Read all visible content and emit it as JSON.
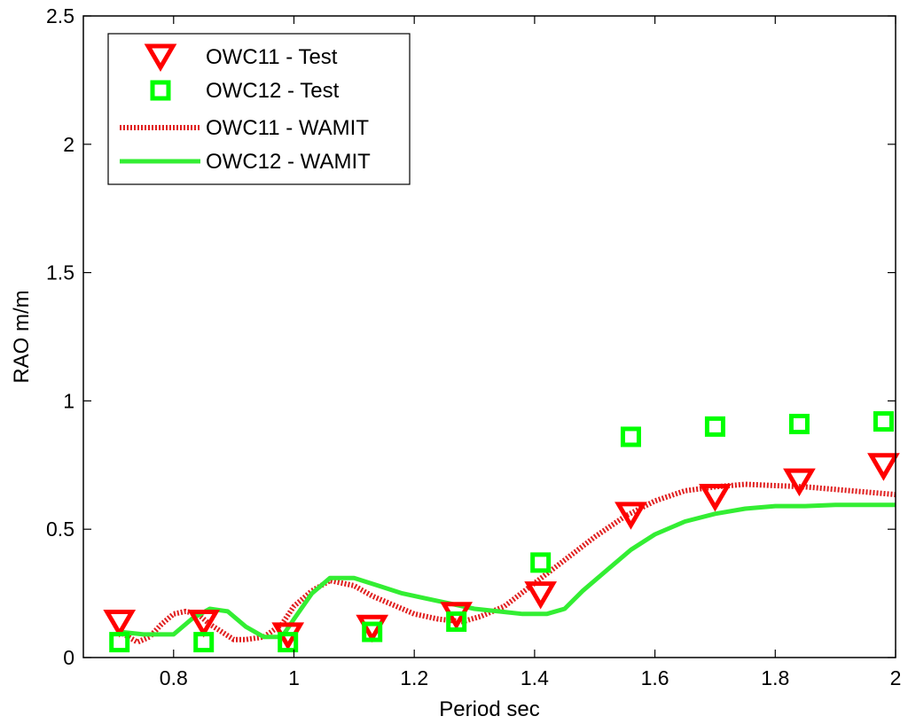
{
  "chart_data": {
    "type": "line",
    "title": "",
    "xlabel": "Period sec",
    "ylabel": "RAO m/m",
    "xlim": [
      0.65,
      2.0
    ],
    "ylim": [
      0,
      2.5
    ],
    "xticks": [
      0.8,
      1.0,
      1.2,
      1.4,
      1.6,
      1.8,
      2.0
    ],
    "xtick_labels": [
      "0.8",
      "1",
      "1.2",
      "1.4",
      "1.6",
      "1.8",
      "2"
    ],
    "yticks": [
      0,
      0.5,
      1.0,
      1.5,
      2.0,
      2.5
    ],
    "ytick_labels": [
      "0",
      "0.5",
      "1",
      "1.5",
      "2",
      "2.5"
    ],
    "grid": false,
    "legend_position": "top-left",
    "series": [
      {
        "name": "OWC11 - Test",
        "style": "marker-triangle-down",
        "color": "#ff0000",
        "x": [
          0.71,
          0.85,
          0.99,
          1.13,
          1.27,
          1.41,
          1.56,
          1.7,
          1.84,
          1.98
        ],
        "y": [
          0.14,
          0.14,
          0.09,
          0.12,
          0.17,
          0.25,
          0.56,
          0.63,
          0.69,
          0.75
        ]
      },
      {
        "name": "OWC12 - Test",
        "style": "marker-square",
        "color": "#00ff00",
        "x": [
          0.71,
          0.85,
          0.99,
          1.13,
          1.27,
          1.41,
          1.56,
          1.7,
          1.84,
          1.98
        ],
        "y": [
          0.06,
          0.06,
          0.06,
          0.1,
          0.14,
          0.37,
          0.86,
          0.9,
          0.91,
          0.92
        ]
      },
      {
        "name": "OWC11 - WAMIT",
        "style": "dotted-line",
        "color": "#e02020",
        "x": [
          0.71,
          0.74,
          0.76,
          0.78,
          0.8,
          0.82,
          0.84,
          0.86,
          0.88,
          0.9,
          0.92,
          0.95,
          0.98,
          1.0,
          1.03,
          1.06,
          1.1,
          1.13,
          1.16,
          1.2,
          1.24,
          1.28,
          1.31,
          1.35,
          1.4,
          1.45,
          1.5,
          1.55,
          1.6,
          1.65,
          1.7,
          1.75,
          1.8,
          1.85,
          1.9,
          1.95,
          2.0
        ],
        "y": [
          0.1,
          0.06,
          0.08,
          0.13,
          0.17,
          0.18,
          0.17,
          0.13,
          0.1,
          0.07,
          0.07,
          0.08,
          0.13,
          0.2,
          0.26,
          0.3,
          0.28,
          0.24,
          0.21,
          0.17,
          0.15,
          0.14,
          0.16,
          0.2,
          0.29,
          0.38,
          0.47,
          0.55,
          0.61,
          0.65,
          0.665,
          0.675,
          0.67,
          0.665,
          0.655,
          0.645,
          0.635
        ]
      },
      {
        "name": "OWC12 - WAMIT",
        "style": "solid-line",
        "color": "#33ee33",
        "x": [
          0.71,
          0.75,
          0.8,
          0.83,
          0.86,
          0.89,
          0.92,
          0.95,
          0.98,
          1.0,
          1.03,
          1.06,
          1.1,
          1.14,
          1.18,
          1.22,
          1.26,
          1.3,
          1.34,
          1.38,
          1.42,
          1.45,
          1.48,
          1.52,
          1.56,
          1.6,
          1.65,
          1.7,
          1.75,
          1.8,
          1.85,
          1.9,
          1.95,
          2.0
        ],
        "y": [
          0.1,
          0.09,
          0.09,
          0.15,
          0.19,
          0.18,
          0.12,
          0.08,
          0.08,
          0.15,
          0.25,
          0.31,
          0.31,
          0.28,
          0.25,
          0.23,
          0.21,
          0.19,
          0.18,
          0.17,
          0.17,
          0.19,
          0.26,
          0.34,
          0.42,
          0.48,
          0.53,
          0.56,
          0.58,
          0.59,
          0.59,
          0.595,
          0.595,
          0.595
        ]
      }
    ]
  }
}
